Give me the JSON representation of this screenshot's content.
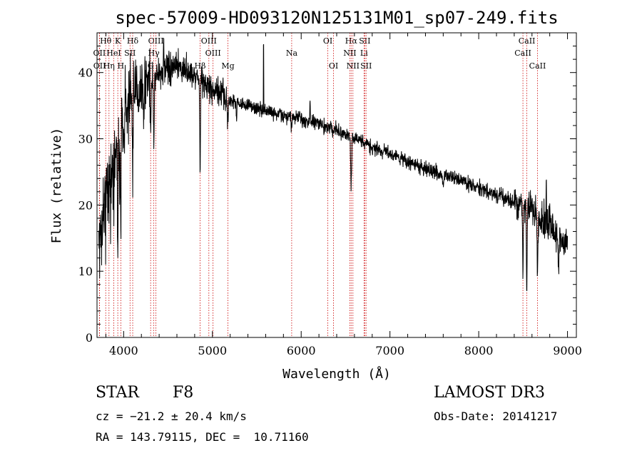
{
  "chart_data": {
    "type": "line",
    "title": "spec-57009-HD093120N125131M01_sp07-249.fits",
    "xlabel": "Wavelength (Å)",
    "ylabel": "Flux (relative)",
    "xlim": [
      3700,
      9100
    ],
    "ylim": [
      0,
      46
    ],
    "xticks": [
      "4000",
      "5000",
      "6000",
      "7000",
      "8000",
      "9000"
    ],
    "yticks": [
      "0",
      "10",
      "20",
      "30",
      "40"
    ],
    "line_colors": {
      "spectrum": "#000000",
      "markers": "#cc0000"
    },
    "lines": [
      {
        "label": "Hθ",
        "wavelength": 3798,
        "row": 0
      },
      {
        "label": "K",
        "wavelength": 3934,
        "row": 0
      },
      {
        "label": "Hδ",
        "wavelength": 4102,
        "row": 0
      },
      {
        "label": "OIII",
        "wavelength": 4364,
        "row": 0
      },
      {
        "label": "OIII",
        "wavelength": 4960,
        "row": 0
      },
      {
        "label": "OI",
        "wavelength": 6300,
        "row": 0
      },
      {
        "label": "Hα",
        "wavelength": 6563,
        "row": 0
      },
      {
        "label": "SII",
        "wavelength": 6716,
        "row": 0
      },
      {
        "label": "CaII",
        "wavelength": 8542,
        "row": 0
      },
      {
        "label": "OII",
        "wavelength": 3727,
        "row": 1
      },
      {
        "label": "HeI",
        "wavelength": 3889,
        "row": 1
      },
      {
        "label": "SII",
        "wavelength": 4072,
        "row": 1
      },
      {
        "label": "Hγ",
        "wavelength": 4340,
        "row": 1
      },
      {
        "label": "OIII",
        "wavelength": 5007,
        "row": 1
      },
      {
        "label": "Na",
        "wavelength": 5893,
        "row": 1
      },
      {
        "label": "NII",
        "wavelength": 6548,
        "row": 1
      },
      {
        "label": "Li",
        "wavelength": 6708,
        "row": 1
      },
      {
        "label": "CaII",
        "wavelength": 8498,
        "row": 1
      },
      {
        "label": "OII",
        "wavelength": 3729,
        "row": 2
      },
      {
        "label": "Hη",
        "wavelength": 3835,
        "row": 2
      },
      {
        "label": "H",
        "wavelength": 3968,
        "row": 2
      },
      {
        "label": "G",
        "wavelength": 4304,
        "row": 2
      },
      {
        "label": "Hβ",
        "wavelength": 4861,
        "row": 2
      },
      {
        "label": "Mg",
        "wavelength": 5175,
        "row": 2
      },
      {
        "label": "OI",
        "wavelength": 6364,
        "row": 2
      },
      {
        "label": "NII",
        "wavelength": 6583,
        "row": 2
      },
      {
        "label": "SII",
        "wavelength": 6731,
        "row": 2
      },
      {
        "label": "CaII",
        "wavelength": 8662,
        "row": 2
      }
    ],
    "continuum": [
      [
        3720,
        14
      ],
      [
        3800,
        22
      ],
      [
        3900,
        27
      ],
      [
        4000,
        33
      ],
      [
        4100,
        37
      ],
      [
        4200,
        38
      ],
      [
        4300,
        39
      ],
      [
        4400,
        40
      ],
      [
        4500,
        40.5
      ],
      [
        4600,
        40.8
      ],
      [
        4700,
        40.5
      ],
      [
        4800,
        39.5
      ],
      [
        4900,
        38.5
      ],
      [
        5000,
        37.5
      ],
      [
        5100,
        36.5
      ],
      [
        5200,
        35.8
      ],
      [
        5400,
        35
      ],
      [
        5600,
        34.2
      ],
      [
        5800,
        33.5
      ],
      [
        6000,
        33
      ],
      [
        6200,
        32.2
      ],
      [
        6400,
        31.2
      ],
      [
        6600,
        30
      ],
      [
        6800,
        28.8
      ],
      [
        7000,
        27.8
      ],
      [
        7200,
        26.5
      ],
      [
        7400,
        25.5
      ],
      [
        7600,
        24.5
      ],
      [
        7800,
        23.8
      ],
      [
        8000,
        22.5
      ],
      [
        8200,
        21.5
      ],
      [
        8400,
        20.5
      ],
      [
        8600,
        19.5
      ],
      [
        8800,
        16.5
      ],
      [
        9000,
        14
      ]
    ],
    "absorption_features": [
      [
        3934,
        6,
        17
      ],
      [
        3968,
        6,
        14
      ],
      [
        4102,
        8,
        14
      ],
      [
        4227,
        6,
        6
      ],
      [
        4304,
        7,
        7
      ],
      [
        4340,
        7,
        9
      ],
      [
        4861,
        6,
        13
      ],
      [
        5175,
        8,
        3
      ],
      [
        5270,
        6,
        2
      ],
      [
        5890,
        6,
        2
      ],
      [
        6563,
        7,
        8
      ],
      [
        7600,
        6,
        2
      ],
      [
        8498,
        5,
        11
      ],
      [
        8542,
        5,
        14
      ],
      [
        8662,
        5,
        11
      ],
      [
        8900,
        5,
        6
      ]
    ],
    "spikes": [
      [
        5577,
        10
      ],
      [
        4450,
        3
      ],
      [
        6100,
        2.5
      ],
      [
        8760,
        6
      ],
      [
        8800,
        3
      ]
    ]
  },
  "footer": {
    "object_class": "STAR",
    "subclass": "F8",
    "survey": "LAMOST DR3",
    "velocity": "cz = −21.2 ± 20.4 km/s",
    "obs_date": "Obs-Date: 20141217",
    "coords": "RA = 143.79115, DEC =  10.71160"
  }
}
